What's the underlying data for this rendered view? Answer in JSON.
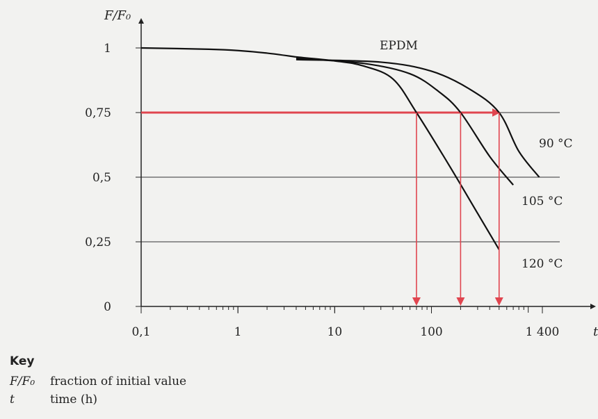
{
  "chart_data": {
    "type": "line",
    "title": "",
    "material_label": "EPDM",
    "ylabel": "F/F₀",
    "xlabel": "t",
    "x_scale": "log",
    "xlim": [
      0.1,
      1400
    ],
    "ylim": [
      0,
      1
    ],
    "x_ticks": [
      {
        "value": 0.1,
        "label": "0,1"
      },
      {
        "value": 1,
        "label": "1"
      },
      {
        "value": 10,
        "label": "10"
      },
      {
        "value": 100,
        "label": "100"
      },
      {
        "value": 1400,
        "label": "1 400"
      }
    ],
    "y_ticks": [
      {
        "value": 0,
        "label": "0"
      },
      {
        "value": 0.25,
        "label": "0,25"
      },
      {
        "value": 0.5,
        "label": "0,5"
      },
      {
        "value": 0.75,
        "label": "0,75"
      },
      {
        "value": 1,
        "label": "1"
      }
    ],
    "gridlines_y": [
      0.25,
      0.5,
      0.75
    ],
    "common_curve": {
      "x": [
        0.1,
        0.5,
        1,
        2,
        4
      ],
      "y": [
        1.0,
        0.995,
        0.99,
        0.98,
        0.965
      ]
    },
    "series": [
      {
        "name": "120 °C",
        "x": [
          4,
          10,
          20,
          40,
          70,
          150,
          300,
          500
        ],
        "y": [
          0.965,
          0.95,
          0.93,
          0.88,
          0.75,
          0.55,
          0.36,
          0.22
        ]
      },
      {
        "name": "105 °C",
        "x": [
          4,
          20,
          60,
          120,
          200,
          400,
          700
        ],
        "y": [
          0.96,
          0.94,
          0.9,
          0.83,
          0.75,
          0.58,
          0.47
        ]
      },
      {
        "name": "90 °C",
        "x": [
          4,
          30,
          100,
          250,
          500,
          800,
          1300
        ],
        "y": [
          0.955,
          0.945,
          0.91,
          0.84,
          0.75,
          0.6,
          0.5
        ]
      }
    ],
    "threshold": {
      "y": 0.75,
      "color": "#e0454f",
      "x_drops": [
        70,
        200,
        500
      ]
    }
  },
  "key": {
    "title": "Key",
    "items": [
      {
        "symbol": "F/F₀",
        "desc": "fraction of initial value"
      },
      {
        "symbol": "t",
        "desc": "time (h)"
      }
    ]
  }
}
